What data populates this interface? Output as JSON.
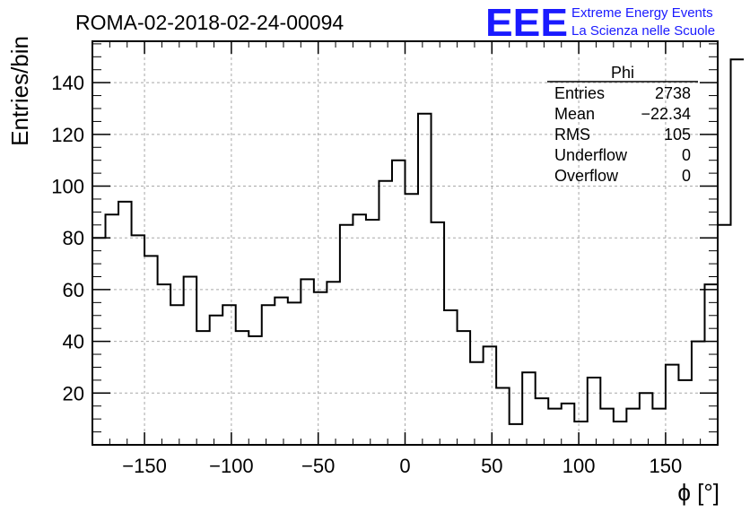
{
  "logo": {
    "mark": "EEE",
    "line1": "Extreme Energy Events",
    "line2": "La Scienza nelle Scuole",
    "color": "#1a1aff"
  },
  "stats": {
    "name": "Phi",
    "rows": [
      {
        "label": "Entries",
        "value": "2738"
      },
      {
        "label": "Mean",
        "value": "−22.34"
      },
      {
        "label": "RMS",
        "value": "105"
      },
      {
        "label": "Underflow",
        "value": "0"
      },
      {
        "label": "Overflow",
        "value": "0"
      }
    ]
  },
  "chart_data": {
    "type": "bar",
    "title": "ROMA-02-2018-02-24-00094",
    "xlabel": "ϕ [°]",
    "ylabel": "Entries/bin",
    "xlim": [
      -180,
      180
    ],
    "ylim": [
      0,
      156
    ],
    "xticks": [
      -150,
      -100,
      -50,
      0,
      50,
      100,
      150
    ],
    "xtick_labels": [
      "−150",
      "−100",
      "−50",
      "0",
      "50",
      "100",
      "150"
    ],
    "yticks": [
      20,
      40,
      60,
      80,
      100,
      120,
      140
    ],
    "ytick_labels": [
      "20",
      "40",
      "60",
      "80",
      "100",
      "120",
      "140"
    ],
    "grid": true,
    "bin_width": 7.5,
    "bin_edges_start": -180,
    "values": [
      80,
      89,
      94,
      81,
      73,
      62,
      54,
      65,
      44,
      50,
      54,
      44,
      42,
      54,
      57,
      55,
      64,
      59,
      63,
      85,
      89,
      87,
      102,
      110,
      97,
      128,
      86,
      52,
      44,
      32,
      38,
      22,
      8,
      28,
      18,
      14,
      16,
      9,
      26,
      14,
      9,
      14,
      20,
      14,
      31,
      25,
      40,
      62,
      85,
      149
    ]
  }
}
